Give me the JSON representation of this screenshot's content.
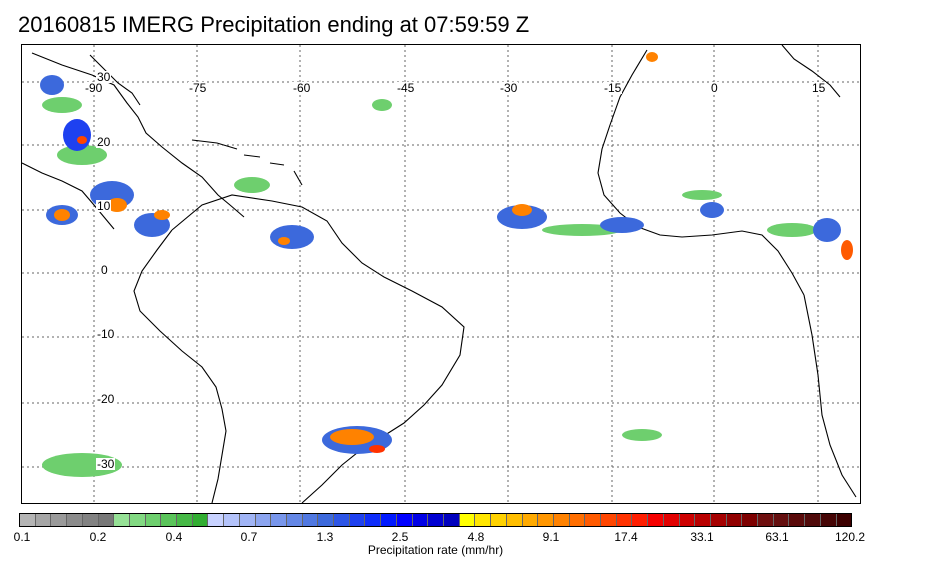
{
  "map": {
    "title": "20160815 IMERG Precipitation ending at 07:59:59 Z",
    "lon_labels": [
      "-90",
      "-75",
      "-60",
      "-45",
      "-30",
      "-15",
      "0",
      "15"
    ],
    "lat_labels": [
      "30",
      "20",
      "10",
      "0",
      "-10",
      "-20",
      "-30"
    ]
  },
  "colorbar": {
    "title": "Precipitation rate (mm/hr)",
    "ticks": [
      "0.1",
      "0.2",
      "0.4",
      "0.7",
      "1.3",
      "2.5",
      "4.8",
      "9.1",
      "17.4",
      "33.1",
      "63.1",
      "120.2"
    ],
    "colors": [
      "#b4b4b4",
      "#a6a6a6",
      "#9a9a9a",
      "#8c8c8c",
      "#828282",
      "#787878",
      "#96e196",
      "#82d982",
      "#6ecf6e",
      "#5ac45a",
      "#46b946",
      "#32ae32",
      "#c8d2ff",
      "#b4c3fa",
      "#a0b4f5",
      "#8ca5f0",
      "#7896eb",
      "#6487e6",
      "#5078e1",
      "#3c69dc",
      "#2d55e6",
      "#1e41f0",
      "#0f2dfa",
      "#0019ff",
      "#0000ff",
      "#0000e6",
      "#0000d2",
      "#0000be",
      "#ffff00",
      "#ffe600",
      "#ffd200",
      "#ffbe00",
      "#ffaa00",
      "#ff9600",
      "#ff8200",
      "#ff6e00",
      "#ff5a00",
      "#ff4600",
      "#ff3200",
      "#ff1e00",
      "#f50000",
      "#e10000",
      "#cd0000",
      "#b90000",
      "#a50000",
      "#910000",
      "#7d0000",
      "#6e0f0f",
      "#640f0f",
      "#5a0a0a",
      "#500a0a",
      "#460505",
      "#3c0000"
    ]
  }
}
